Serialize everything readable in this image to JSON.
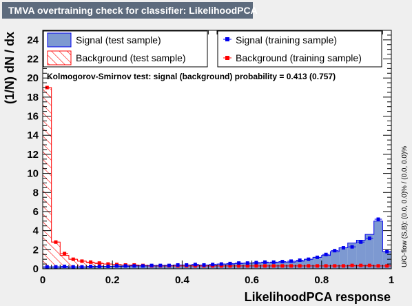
{
  "title": "TMVA overtraining check for classifier: LikelihoodPCA",
  "chart_data": {
    "type": "histogram",
    "xlabel": "LikelihoodPCA response",
    "ylabel": "(1/N) dN / dx",
    "xlim": [
      0,
      1
    ],
    "ylim": [
      0,
      25
    ],
    "x_ticks": [
      "0",
      "0.2",
      "0.4",
      "0.6",
      "0.8",
      "1"
    ],
    "y_ticks": [
      "0",
      "2",
      "4",
      "6",
      "8",
      "10",
      "12",
      "14",
      "16",
      "18",
      "20",
      "22",
      "24"
    ],
    "bins": 40,
    "legend": {
      "signal_test": "Signal (test sample)",
      "background_test": "Background (test sample)",
      "signal_train": "Signal (training sample)",
      "background_train": "Background (training sample)"
    },
    "ks_text": "Kolmogorov-Smirnov test: signal (background) probability = 0.413 (0.757)",
    "overflow_text": "U/O-flow (S,B): (0.0, 0.0)% / (0.0, 0.0)%",
    "colors": {
      "signal": "#7d99d1",
      "signal_line": "#0000ee",
      "background": "#ff0000"
    },
    "signal_test": [
      0.2,
      0.2,
      0.15,
      0.2,
      0.2,
      0.2,
      0.25,
      0.25,
      0.25,
      0.25,
      0.3,
      0.3,
      0.3,
      0.3,
      0.35,
      0.4,
      0.4,
      0.4,
      0.4,
      0.4,
      0.5,
      0.5,
      0.55,
      0.6,
      0.6,
      0.65,
      0.65,
      0.7,
      0.7,
      0.8,
      1.0,
      1.2,
      1.4,
      1.8,
      2.2,
      2.7,
      3.0,
      3.6,
      5.0,
      1.8
    ],
    "background_test": [
      19.0,
      2.8,
      1.4,
      1.0,
      0.8,
      0.65,
      0.55,
      0.5,
      0.45,
      0.4,
      0.35,
      0.35,
      0.3,
      0.3,
      0.3,
      0.3,
      0.3,
      0.3,
      0.3,
      0.3,
      0.3,
      0.3,
      0.3,
      0.3,
      0.3,
      0.3,
      0.3,
      0.3,
      0.3,
      0.3,
      0.3,
      0.3,
      0.3,
      0.3,
      0.3,
      0.3,
      0.3,
      0.3,
      0.3,
      0.3
    ],
    "signal_train": [
      0.2,
      0.2,
      0.25,
      0.2,
      0.2,
      0.25,
      0.25,
      0.25,
      0.3,
      0.3,
      0.3,
      0.3,
      0.35,
      0.35,
      0.35,
      0.4,
      0.4,
      0.45,
      0.4,
      0.45,
      0.5,
      0.55,
      0.6,
      0.6,
      0.65,
      0.7,
      0.7,
      0.75,
      0.8,
      0.9,
      1.0,
      1.2,
      1.5,
      1.9,
      2.2,
      2.3,
      2.8,
      3.2,
      5.2,
      1.8
    ],
    "background_train": [
      19.0,
      2.8,
      1.6,
      1.0,
      0.8,
      0.7,
      0.6,
      0.5,
      0.45,
      0.4,
      0.4,
      0.35,
      0.3,
      0.3,
      0.3,
      0.3,
      0.3,
      0.3,
      0.3,
      0.3,
      0.3,
      0.3,
      0.3,
      0.3,
      0.3,
      0.3,
      0.3,
      0.3,
      0.3,
      0.3,
      0.3,
      0.3,
      0.3,
      0.3,
      0.3,
      0.35,
      0.35,
      0.35,
      0.3,
      0.3
    ]
  }
}
